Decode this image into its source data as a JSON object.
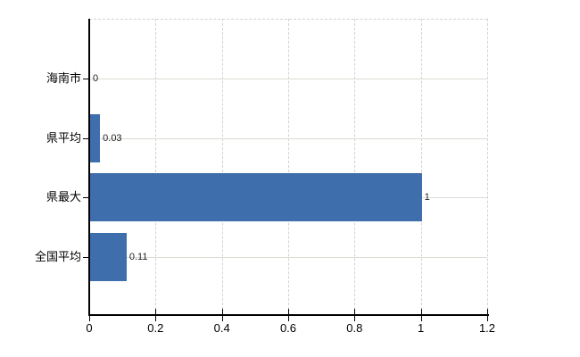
{
  "chart_data": {
    "type": "bar",
    "orientation": "horizontal",
    "title": "",
    "xlabel": "",
    "ylabel": "",
    "legend": null,
    "grid": true,
    "categories_top_to_bottom": [
      "海南市",
      "県平均",
      "県最大",
      "全国平均"
    ],
    "values": [
      0,
      0.03,
      1,
      0.11
    ],
    "value_labels": [
      "0",
      "0.03",
      "1",
      "0.11"
    ],
    "xlim": [
      0,
      1.2
    ],
    "x_ticks": [
      0,
      0.2,
      0.4,
      0.6,
      0.8,
      1,
      1.2
    ],
    "x_tick_labels": [
      "0",
      "0.2",
      "0.4",
      "0.6",
      "0.8",
      "1",
      "1.2"
    ],
    "colors": {
      "bar": "#3e6fac",
      "axis": "#000000",
      "grid_vertical": "#d5cfd5",
      "grid_horizontal": "#d6ddd2",
      "value_label": "#222222",
      "tick_label": "#000000",
      "background": "#ffffff"
    }
  }
}
